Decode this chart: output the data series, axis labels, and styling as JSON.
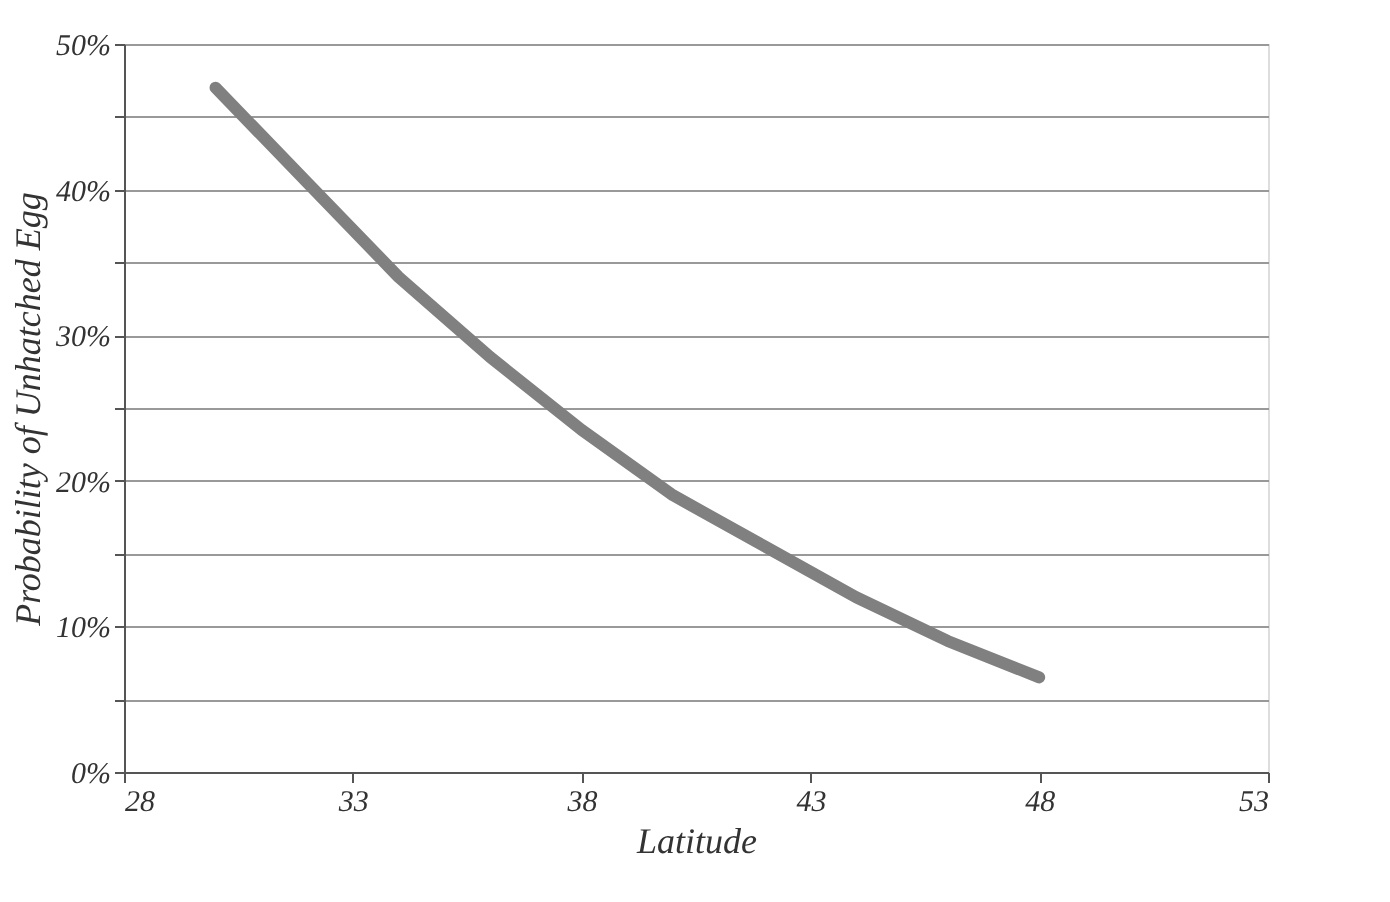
{
  "chart_data": {
    "type": "line",
    "xlabel": "Latitude",
    "ylabel": "Probability of Unhatched Egg",
    "x": [
      30,
      32,
      34,
      36,
      38,
      40,
      42,
      44,
      46,
      48
    ],
    "series": [
      {
        "color": "#808080",
        "values": [
          47,
          40.5,
          34,
          28.5,
          23.5,
          19,
          15.5,
          12,
          9,
          6.5
        ]
      }
    ],
    "xlim": [
      28,
      53
    ],
    "xticks": [
      28,
      33,
      38,
      43,
      48,
      53
    ],
    "ylim": [
      0,
      50
    ],
    "yticks": [
      {
        "value": 0,
        "label": "0%"
      },
      {
        "value": 5,
        "label": null
      },
      {
        "value": 10,
        "label": "10%"
      },
      {
        "value": 15,
        "label": null
      },
      {
        "value": 20,
        "label": "20%"
      },
      {
        "value": 25,
        "label": null
      },
      {
        "value": 30,
        "label": "30%"
      },
      {
        "value": 35,
        "label": null
      },
      {
        "value": 40,
        "label": "40%"
      },
      {
        "value": 45,
        "label": null
      },
      {
        "value": 50,
        "label": "50%"
      }
    ],
    "grid": "y",
    "marker": "none",
    "line_style": "solid",
    "legend": false
  }
}
